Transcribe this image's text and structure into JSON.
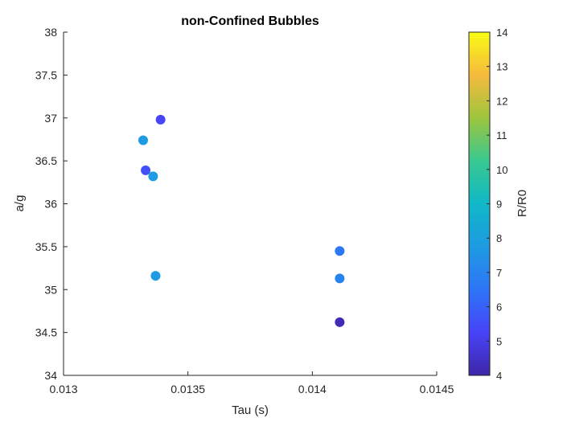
{
  "chart_data": {
    "type": "scatter",
    "title": "non-Confined Bubbles",
    "xlabel": "Tau (s)",
    "ylabel": "a/g",
    "xlim": [
      0.013,
      0.0145
    ],
    "ylim": [
      34,
      38
    ],
    "xticks": [
      0.013,
      0.0135,
      0.014,
      0.0145
    ],
    "xtick_labels": [
      "0.013",
      "0.0135",
      "0.014",
      "0.0145"
    ],
    "yticks": [
      34,
      34.5,
      35,
      35.5,
      36,
      36.5,
      37,
      37.5,
      38
    ],
    "ytick_labels": [
      "34",
      "34.5",
      "35",
      "35.5",
      "36",
      "36.5",
      "37",
      "37.5",
      "38"
    ],
    "grid": false,
    "colorbar": {
      "label": "R/R0",
      "range": [
        4,
        14
      ],
      "ticks": [
        "4",
        "5",
        "6",
        "7",
        "8",
        "9",
        "10",
        "11",
        "12",
        "13",
        "14"
      ],
      "colormap": "parula"
    },
    "points": [
      {
        "x": 0.01332,
        "y": 36.74,
        "c": 7.8
      },
      {
        "x": 0.01333,
        "y": 36.39,
        "c": 5.6
      },
      {
        "x": 0.01336,
        "y": 36.32,
        "c": 7.8
      },
      {
        "x": 0.01337,
        "y": 35.16,
        "c": 7.8
      },
      {
        "x": 0.01339,
        "y": 36.98,
        "c": 5.3
      },
      {
        "x": 0.01411,
        "y": 35.45,
        "c": 6.6
      },
      {
        "x": 0.01411,
        "y": 35.13,
        "c": 7.0
      },
      {
        "x": 0.01411,
        "y": 34.62,
        "c": 4.2
      }
    ]
  }
}
